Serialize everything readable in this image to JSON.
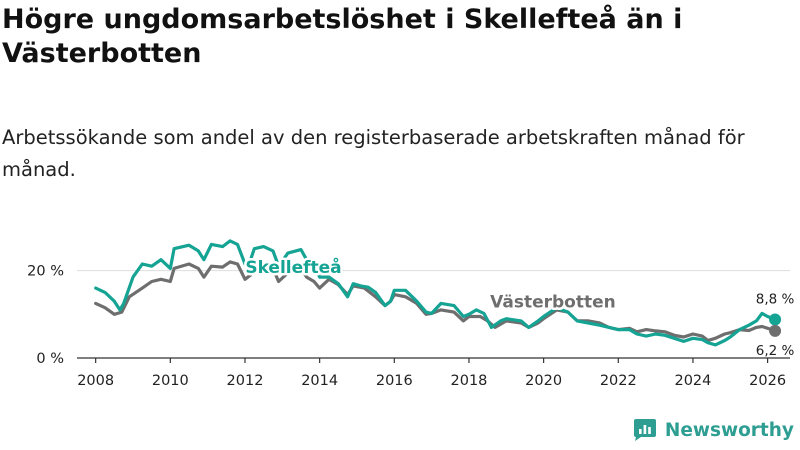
{
  "chart_data": {
    "type": "line",
    "title": "Högre ungdomsarbetslöshet i Skellefteå än i Västerbotten",
    "subtitle": "Arbetssökande som andel av den registerbaserade arbetskraften månad för månad.",
    "xlabel": "",
    "ylabel": "",
    "xlim": [
      2007.5,
      2026.6
    ],
    "ylim": [
      0,
      27
    ],
    "grid": true,
    "y_ticks": [
      {
        "value": 0,
        "label": "0 %"
      },
      {
        "value": 20,
        "label": "20 %"
      }
    ],
    "x_ticks": [
      {
        "value": 2008,
        "label": "2008"
      },
      {
        "value": 2010,
        "label": "2010"
      },
      {
        "value": 2012,
        "label": "2012"
      },
      {
        "value": 2014,
        "label": "2014"
      },
      {
        "value": 2016,
        "label": "2016"
      },
      {
        "value": 2018,
        "label": "2018"
      },
      {
        "value": 2020,
        "label": "2020"
      },
      {
        "value": 2022,
        "label": "2022"
      },
      {
        "value": 2024,
        "label": "2024"
      },
      {
        "value": 2026,
        "label": "2026"
      }
    ],
    "series": [
      {
        "name": "Skellefteå",
        "color": "#15a394",
        "end_label": "8,8 %",
        "end_label_position": "above",
        "label_anchor": [
          2013.3,
          19.5
        ],
        "points": [
          [
            2008.0,
            16.0
          ],
          [
            2008.25,
            15.0
          ],
          [
            2008.5,
            13.0
          ],
          [
            2008.65,
            11.0
          ],
          [
            2008.75,
            12.5
          ],
          [
            2009.0,
            18.5
          ],
          [
            2009.25,
            21.5
          ],
          [
            2009.5,
            21.0
          ],
          [
            2009.75,
            22.5
          ],
          [
            2010.0,
            20.5
          ],
          [
            2010.1,
            25.0
          ],
          [
            2010.5,
            25.8
          ],
          [
            2010.75,
            24.5
          ],
          [
            2010.9,
            22.5
          ],
          [
            2011.1,
            26.0
          ],
          [
            2011.4,
            25.5
          ],
          [
            2011.6,
            26.8
          ],
          [
            2011.8,
            26.0
          ],
          [
            2012.0,
            21.5
          ],
          [
            2012.15,
            22.5
          ],
          [
            2012.25,
            25.0
          ],
          [
            2012.5,
            25.5
          ],
          [
            2012.75,
            24.5
          ],
          [
            2012.9,
            21.0
          ],
          [
            2013.15,
            24.0
          ],
          [
            2013.5,
            24.8
          ],
          [
            2013.65,
            22.5
          ],
          [
            2013.85,
            21.5
          ],
          [
            2014.0,
            18.5
          ],
          [
            2014.25,
            18.5
          ],
          [
            2014.5,
            17.0
          ],
          [
            2014.75,
            14.0
          ],
          [
            2014.9,
            17.0
          ],
          [
            2015.1,
            16.5
          ],
          [
            2015.3,
            16.2
          ],
          [
            2015.5,
            15.0
          ],
          [
            2015.75,
            12.0
          ],
          [
            2015.9,
            13.0
          ],
          [
            2016.0,
            15.5
          ],
          [
            2016.3,
            15.5
          ],
          [
            2016.6,
            13.0
          ],
          [
            2016.85,
            10.5
          ],
          [
            2017.0,
            10.2
          ],
          [
            2017.25,
            12.5
          ],
          [
            2017.6,
            12.0
          ],
          [
            2017.85,
            9.5
          ],
          [
            2018.0,
            10.0
          ],
          [
            2018.2,
            11.0
          ],
          [
            2018.4,
            10.2
          ],
          [
            2018.6,
            7.0
          ],
          [
            2018.85,
            8.5
          ],
          [
            2019.0,
            9.0
          ],
          [
            2019.4,
            8.5
          ],
          [
            2019.6,
            7.0
          ],
          [
            2019.85,
            8.5
          ],
          [
            2020.0,
            9.5
          ],
          [
            2020.35,
            11.5
          ],
          [
            2020.65,
            10.5
          ],
          [
            2020.9,
            8.5
          ],
          [
            2021.2,
            8.0
          ],
          [
            2021.5,
            7.5
          ],
          [
            2021.75,
            7.0
          ],
          [
            2022.0,
            6.5
          ],
          [
            2022.3,
            6.5
          ],
          [
            2022.5,
            5.5
          ],
          [
            2022.75,
            5.0
          ],
          [
            2023.0,
            5.5
          ],
          [
            2023.25,
            5.2
          ],
          [
            2023.5,
            4.5
          ],
          [
            2023.75,
            3.8
          ],
          [
            2024.0,
            4.5
          ],
          [
            2024.25,
            4.2
          ],
          [
            2024.4,
            3.5
          ],
          [
            2024.6,
            3.0
          ],
          [
            2024.85,
            4.0
          ],
          [
            2025.0,
            4.8
          ],
          [
            2025.25,
            6.5
          ],
          [
            2025.5,
            7.5
          ],
          [
            2025.7,
            8.5
          ],
          [
            2025.85,
            10.2
          ],
          [
            2026.0,
            9.5
          ],
          [
            2026.2,
            8.8
          ]
        ]
      },
      {
        "name": "Västerbotten",
        "color": "#6e6e6e",
        "end_label": "6,2 %",
        "end_label_position": "below",
        "label_anchor": [
          2020.25,
          11.5
        ],
        "points": [
          [
            2008.0,
            12.5
          ],
          [
            2008.25,
            11.5
          ],
          [
            2008.5,
            10.0
          ],
          [
            2008.7,
            10.5
          ],
          [
            2008.9,
            14.0
          ],
          [
            2009.25,
            16.0
          ],
          [
            2009.5,
            17.5
          ],
          [
            2009.75,
            18.0
          ],
          [
            2010.0,
            17.5
          ],
          [
            2010.1,
            20.5
          ],
          [
            2010.5,
            21.5
          ],
          [
            2010.75,
            20.5
          ],
          [
            2010.9,
            18.5
          ],
          [
            2011.1,
            21.0
          ],
          [
            2011.4,
            20.8
          ],
          [
            2011.6,
            22.0
          ],
          [
            2011.8,
            21.5
          ],
          [
            2012.0,
            18.0
          ],
          [
            2012.15,
            19.0
          ],
          [
            2012.3,
            21.0
          ],
          [
            2012.5,
            21.5
          ],
          [
            2012.75,
            20.5
          ],
          [
            2012.9,
            17.5
          ],
          [
            2013.15,
            19.5
          ],
          [
            2013.5,
            20.5
          ],
          [
            2013.65,
            18.5
          ],
          [
            2013.85,
            17.5
          ],
          [
            2014.0,
            16.0
          ],
          [
            2014.25,
            18.0
          ],
          [
            2014.5,
            16.8
          ],
          [
            2014.75,
            14.5
          ],
          [
            2014.9,
            16.5
          ],
          [
            2015.2,
            16.0
          ],
          [
            2015.5,
            14.0
          ],
          [
            2015.75,
            12.0
          ],
          [
            2015.9,
            13.0
          ],
          [
            2016.0,
            14.5
          ],
          [
            2016.3,
            14.0
          ],
          [
            2016.6,
            12.5
          ],
          [
            2016.85,
            10.0
          ],
          [
            2017.0,
            10.2
          ],
          [
            2017.25,
            11.0
          ],
          [
            2017.6,
            10.5
          ],
          [
            2017.85,
            8.5
          ],
          [
            2018.0,
            9.5
          ],
          [
            2018.3,
            9.5
          ],
          [
            2018.5,
            8.5
          ],
          [
            2018.7,
            7.0
          ],
          [
            2019.0,
            8.5
          ],
          [
            2019.4,
            8.0
          ],
          [
            2019.6,
            7.0
          ],
          [
            2019.85,
            8.0
          ],
          [
            2020.0,
            9.0
          ],
          [
            2020.35,
            11.0
          ],
          [
            2020.65,
            10.5
          ],
          [
            2020.9,
            8.5
          ],
          [
            2021.2,
            8.5
          ],
          [
            2021.5,
            8.0
          ],
          [
            2021.75,
            7.0
          ],
          [
            2022.0,
            6.5
          ],
          [
            2022.3,
            6.8
          ],
          [
            2022.5,
            6.0
          ],
          [
            2022.75,
            6.5
          ],
          [
            2023.0,
            6.2
          ],
          [
            2023.25,
            6.0
          ],
          [
            2023.5,
            5.2
          ],
          [
            2023.75,
            4.8
          ],
          [
            2024.0,
            5.5
          ],
          [
            2024.25,
            5.0
          ],
          [
            2024.4,
            4.0
          ],
          [
            2024.6,
            4.5
          ],
          [
            2024.85,
            5.5
          ],
          [
            2025.0,
            5.8
          ],
          [
            2025.25,
            6.5
          ],
          [
            2025.5,
            6.3
          ],
          [
            2025.7,
            7.0
          ],
          [
            2025.85,
            7.2
          ],
          [
            2026.0,
            6.8
          ],
          [
            2026.2,
            6.2
          ]
        ]
      }
    ]
  },
  "brand": {
    "name": "Newsworthy",
    "color": "#2e9e92",
    "icon": "newsworthy-logo-icon"
  }
}
